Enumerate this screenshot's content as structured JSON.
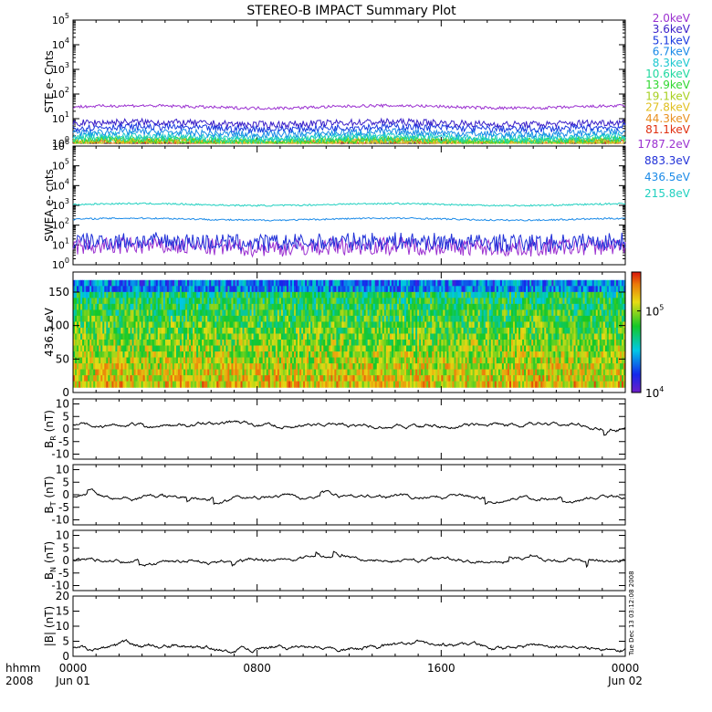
{
  "title": "STEREO-B IMPACT Summary Plot",
  "time_axis": {
    "ticks": [
      {
        "hour": 0,
        "time": "0000",
        "date": "Jun 01"
      },
      {
        "hour": 8,
        "time": "0800",
        "date": ""
      },
      {
        "hour": 16,
        "time": "1600",
        "date": ""
      },
      {
        "hour": 24,
        "time": "0000",
        "date": "Jun 02"
      }
    ],
    "label_unit": "hhmm",
    "label_year": "2008",
    "range_hours": [
      0,
      24
    ]
  },
  "footer": "Tue Dec 13 03:12:08 2008",
  "colors": {
    "mag_trace": "#000000",
    "axis": "#000000"
  },
  "chart_data": [
    {
      "type": "line",
      "name": "ste",
      "ylabel": "STE e- Cnts",
      "yscale": "log",
      "ylim_exp": [
        0,
        5
      ],
      "tick_exponents": [
        0,
        1,
        2,
        3,
        4,
        5
      ],
      "legend": [
        {
          "label": "2.0keV",
          "color": "#9b30d0",
          "level": 30
        },
        {
          "label": "3.6keV",
          "color": "#3a1fc8",
          "level": 6.5
        },
        {
          "label": "5.1keV",
          "color": "#1a3ae0",
          "level": 4.2
        },
        {
          "label": "6.7keV",
          "color": "#1a8ae8",
          "level": 2.6
        },
        {
          "label": "8.3keV",
          "color": "#1ec8d0",
          "level": 1.9
        },
        {
          "label": "10.6keV",
          "color": "#20d8a0",
          "level": 1.5
        },
        {
          "label": "13.9keV",
          "color": "#30d830",
          "level": 1.3
        },
        {
          "label": "19.1keV",
          "color": "#a8d020",
          "level": 1.2
        },
        {
          "label": "27.8keV",
          "color": "#e0c020",
          "level": 1.1
        },
        {
          "label": "44.3keV",
          "color": "#e89020",
          "level": 1.05
        },
        {
          "label": "81.1keV",
          "color": "#e03010",
          "level": 1.02
        }
      ]
    },
    {
      "type": "line",
      "name": "swea",
      "ylabel": "SWEA e- cnts",
      "yscale": "log",
      "ylim_exp": [
        0,
        6
      ],
      "tick_exponents": [
        0,
        1,
        2,
        3,
        4,
        5,
        6
      ],
      "legend": [
        {
          "label": "1787.2eV",
          "color": "#9b30d0",
          "level": 8
        },
        {
          "label": "883.3eV",
          "color": "#2030d8",
          "level": 14
        },
        {
          "label": "436.5eV",
          "color": "#1a8ae8",
          "level": 200
        },
        {
          "label": "215.8eV",
          "color": "#20d0c0",
          "level": 1100
        }
      ]
    },
    {
      "type": "heatmap",
      "name": "pad",
      "ylabel": "436.5 eV",
      "ylim": [
        0,
        180
      ],
      "yticks": [
        0,
        50,
        100,
        150
      ],
      "colorbar": {
        "log": true,
        "min": 10000,
        "max": 300000,
        "tick_labels": [
          {
            "value": 10000,
            "exp": "4",
            "base": "10"
          },
          {
            "value": 100000,
            "exp": "5",
            "base": "10"
          }
        ]
      }
    },
    {
      "type": "line",
      "name": "br",
      "ylabel": "B",
      "ylabel_sub": "R",
      "ylabel_unit": "(nT)",
      "ylim": [
        -12,
        12
      ],
      "yticks": [
        -10,
        -5,
        0,
        5,
        10
      ],
      "mean": 1.5,
      "spread": 2.2
    },
    {
      "type": "line",
      "name": "bt",
      "ylabel": "B",
      "ylabel_sub": "T",
      "ylabel_unit": "(nT)",
      "ylim": [
        -12,
        12
      ],
      "yticks": [
        -10,
        -5,
        0,
        5,
        10
      ],
      "mean": -0.8,
      "spread": 2.5
    },
    {
      "type": "line",
      "name": "bn",
      "ylabel": "B",
      "ylabel_sub": "N",
      "ylabel_unit": "(nT)",
      "ylim": [
        -12,
        12
      ],
      "yticks": [
        -10,
        -5,
        0,
        5,
        10
      ],
      "mean": 0,
      "spread": 2.0
    },
    {
      "type": "line",
      "name": "bmag",
      "ylabel": "|B|",
      "ylabel_unit": "(nT)",
      "ylim": [
        0,
        20
      ],
      "yticks": [
        0,
        5,
        10,
        15,
        20
      ],
      "mean": 3.0,
      "spread": 0.5
    }
  ]
}
